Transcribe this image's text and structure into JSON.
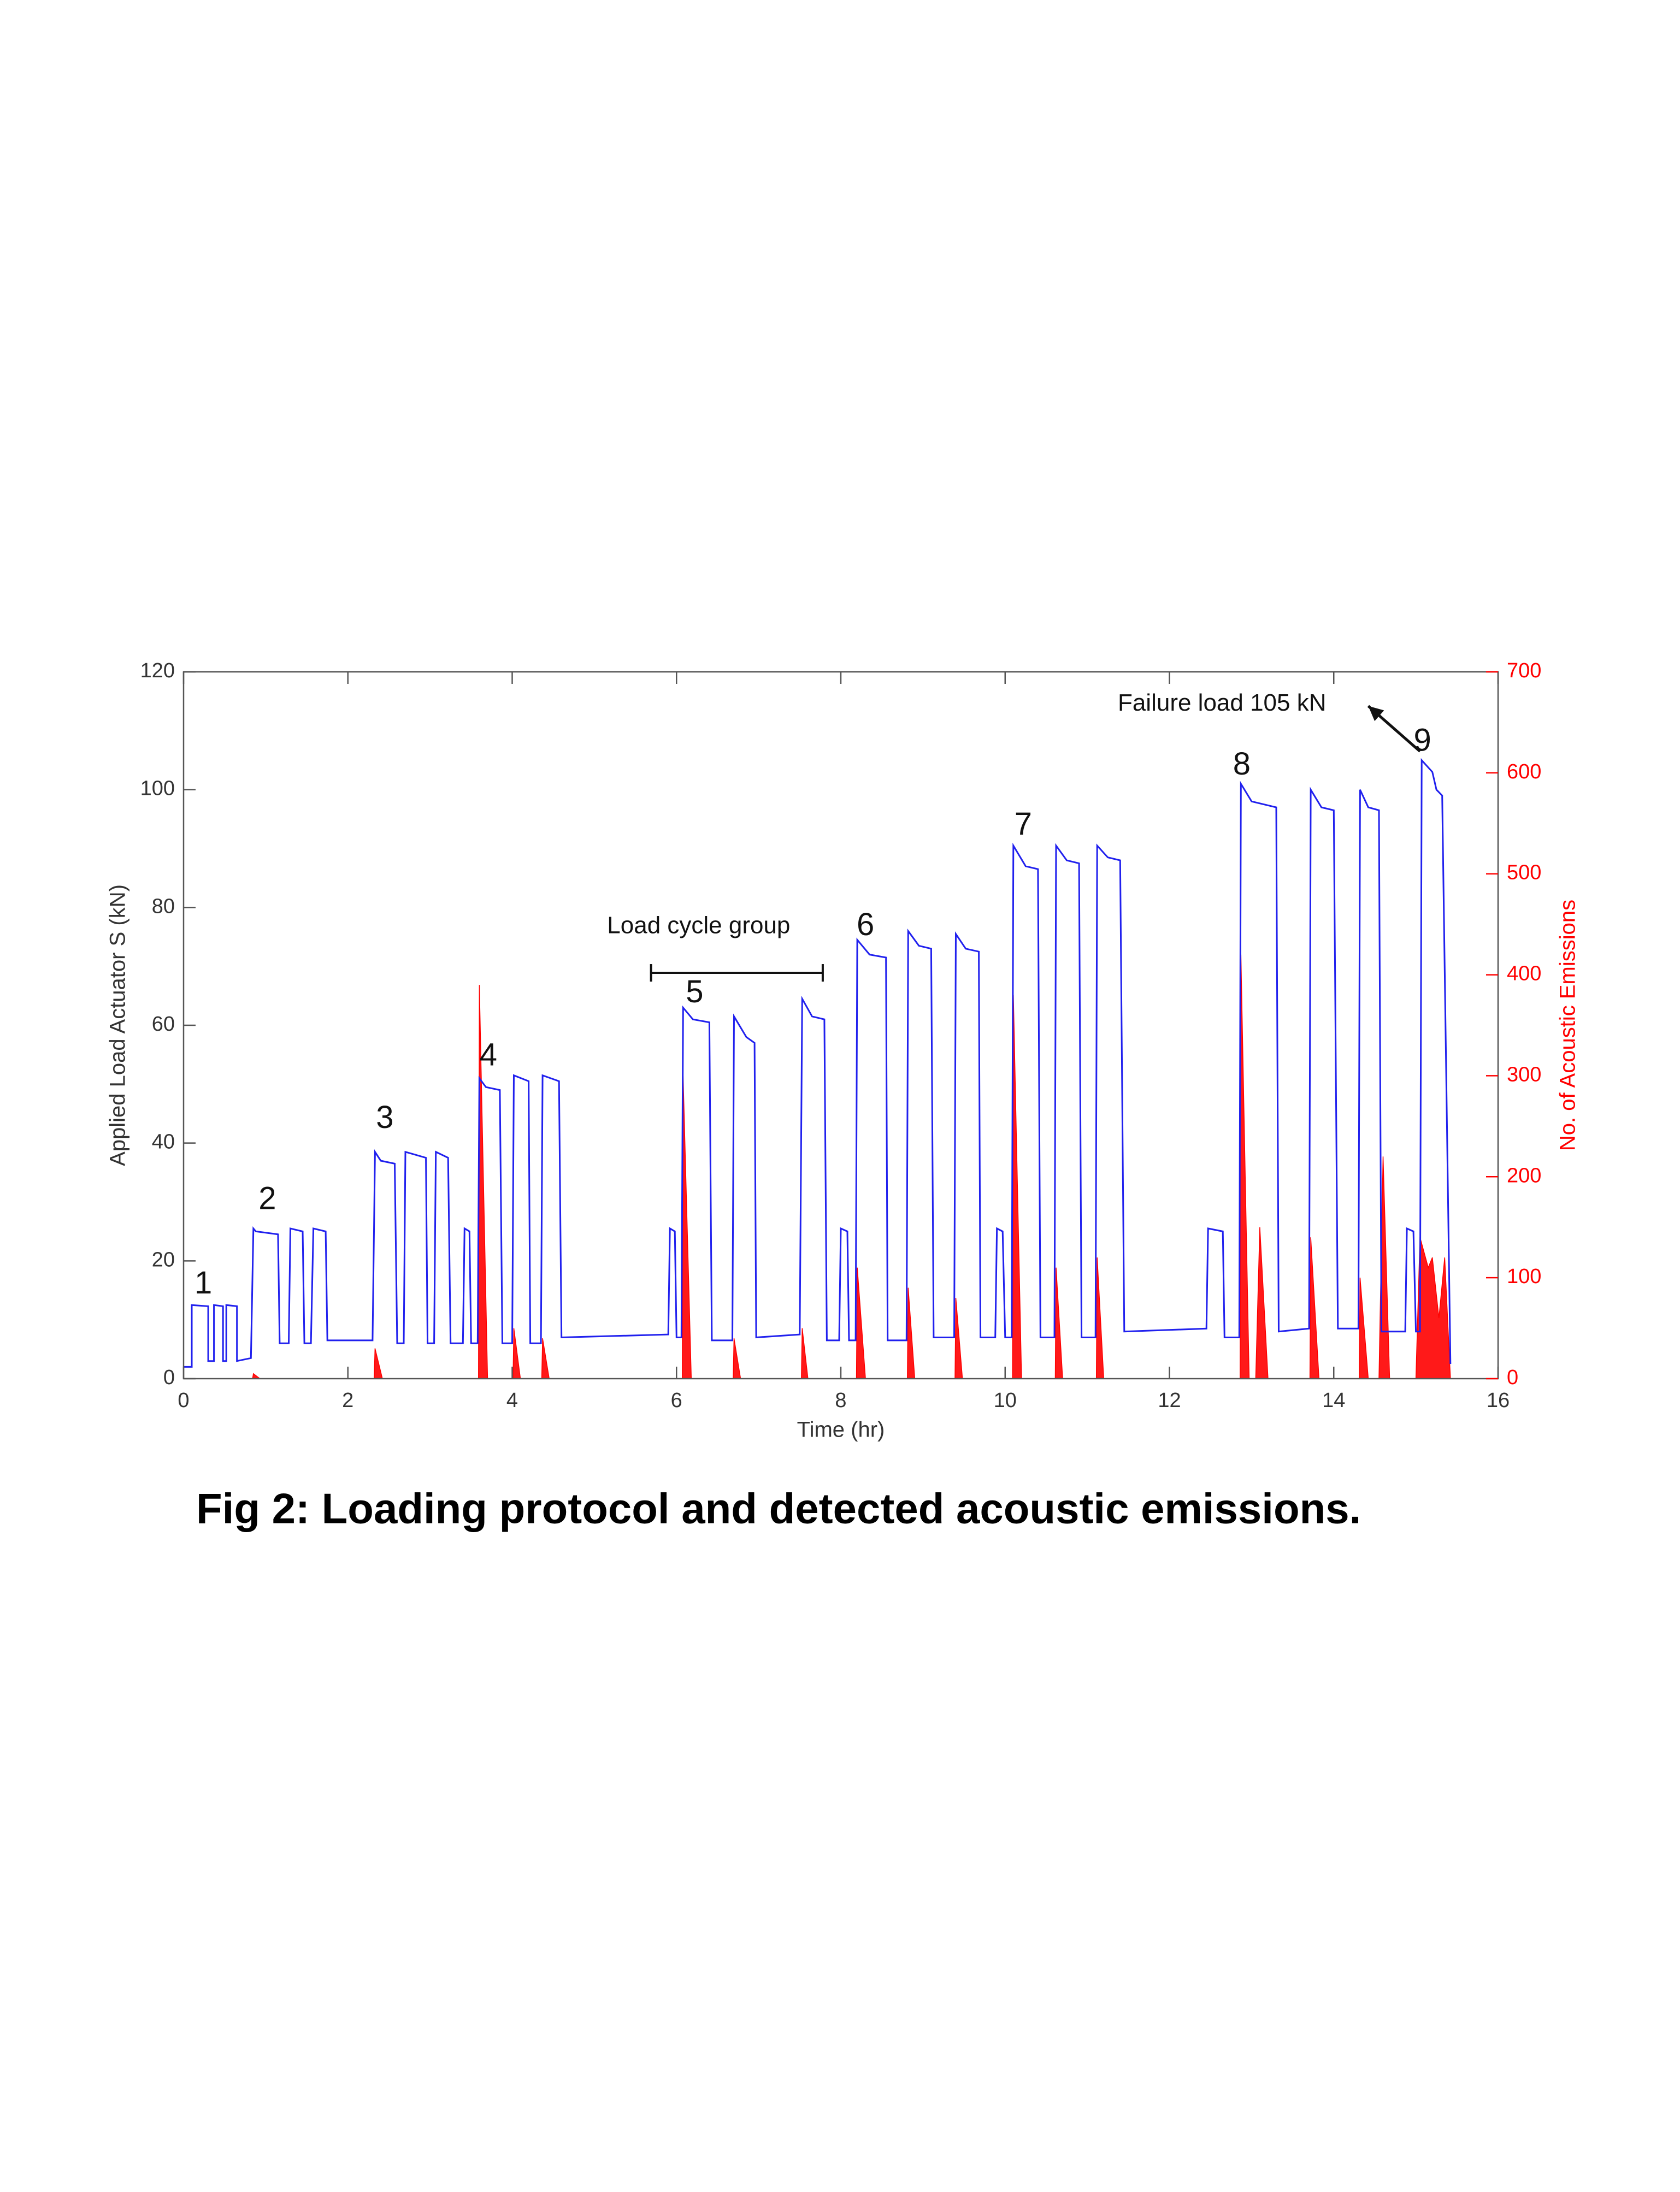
{
  "chart_data": {
    "type": "line",
    "caption": "Fig 2: Loading protocol and detected acoustic emissions.",
    "xlabel": "Time (hr)",
    "ylabel": "Applied Load Actuator S (kN)",
    "y2label": "No. of Acoustic Emissions",
    "xlim": [
      0,
      16
    ],
    "xticks": [
      0,
      2,
      4,
      6,
      8,
      10,
      12,
      14,
      16
    ],
    "ylim": [
      0,
      120
    ],
    "yticks": [
      0,
      20,
      40,
      60,
      80,
      100,
      120
    ],
    "y2lim": [
      0,
      700
    ],
    "y2ticks": [
      0,
      100,
      200,
      300,
      400,
      500,
      600,
      700
    ],
    "annotations": [
      "1",
      "2",
      "3",
      "4",
      "5",
      "6",
      "7",
      "8",
      "9",
      "Load cycle group",
      "Failure load 105 kN"
    ],
    "series": [
      {
        "color": "#ff0000",
        "axis": "y2",
        "fill": true,
        "x": [
          0,
          0.84,
          0.85,
          0.93,
          2.32,
          2.33,
          2.42,
          3.59,
          3.6,
          3.7,
          4.01,
          4.02,
          4.1,
          4.36,
          4.37,
          4.45,
          6.07,
          6.08,
          6.18,
          6.69,
          6.7,
          6.78,
          7.52,
          7.53,
          7.6,
          8.19,
          8.2,
          8.3,
          8.81,
          8.82,
          8.9,
          9.39,
          9.4,
          9.48,
          10.09,
          10.1,
          10.2,
          10.61,
          10.62,
          10.7,
          11.11,
          11.12,
          11.2,
          12.86,
          12.87,
          12.97,
          13.05,
          13.1,
          13.2,
          13.71,
          13.72,
          13.82,
          14.31,
          14.32,
          14.42,
          14.55,
          14.6,
          14.68,
          15.0,
          15.05,
          15.15,
          15.2,
          15.28,
          15.35,
          15.42
        ],
        "values": [
          0,
          0,
          5,
          0,
          0,
          30,
          0,
          0,
          390,
          0,
          0,
          50,
          0,
          0,
          40,
          0,
          0,
          300,
          0,
          0,
          40,
          0,
          0,
          50,
          0,
          0,
          110,
          0,
          0,
          90,
          0,
          0,
          80,
          0,
          0,
          380,
          0,
          0,
          110,
          0,
          0,
          120,
          0,
          0,
          420,
          0,
          0,
          150,
          0,
          0,
          140,
          0,
          0,
          100,
          0,
          0,
          220,
          0,
          0,
          140,
          110,
          120,
          60,
          120,
          0
        ]
      },
      {
        "color": "#2020ee",
        "axis": "y",
        "x": [
          0,
          0.1,
          0.1,
          0.3,
          0.3,
          0.37,
          0.37,
          0.48,
          0.48,
          0.52,
          0.52,
          0.65,
          0.65,
          0.82,
          0.85,
          0.88,
          1.15,
          1.17,
          1.28,
          1.3,
          1.45,
          1.47,
          1.55,
          1.58,
          1.73,
          1.75,
          2.3,
          2.33,
          2.4,
          2.57,
          2.6,
          2.68,
          2.7,
          2.95,
          2.97,
          3.05,
          3.07,
          3.22,
          3.25,
          3.4,
          3.42,
          3.48,
          3.5,
          3.58,
          3.6,
          3.68,
          3.85,
          3.88,
          4.0,
          4.02,
          4.2,
          4.22,
          4.35,
          4.37,
          4.57,
          4.6,
          5.9,
          5.92,
          5.98,
          6.0,
          6.06,
          6.08,
          6.2,
          6.4,
          6.43,
          6.68,
          6.7,
          6.85,
          6.95,
          6.97,
          7.5,
          7.53,
          7.65,
          7.8,
          7.83,
          7.98,
          8.0,
          8.08,
          8.1,
          8.18,
          8.2,
          8.35,
          8.55,
          8.57,
          8.8,
          8.82,
          8.95,
          9.1,
          9.13,
          9.38,
          9.4,
          9.52,
          9.68,
          9.7,
          9.88,
          9.9,
          9.97,
          10.0,
          10.08,
          10.1,
          10.25,
          10.4,
          10.43,
          10.6,
          10.62,
          10.75,
          10.9,
          10.93,
          11.1,
          11.12,
          11.25,
          11.4,
          11.45,
          12.45,
          12.47,
          12.65,
          12.67,
          12.85,
          12.87,
          13.0,
          13.3,
          13.33,
          13.7,
          13.72,
          13.85,
          14.0,
          14.05,
          14.3,
          14.32,
          14.42,
          14.55,
          14.58,
          14.87,
          14.89,
          14.97,
          15.0,
          15.05,
          15.07,
          15.2,
          15.25,
          15.32,
          15.42
        ],
        "values": [
          2,
          2,
          12.5,
          12.3,
          3,
          3,
          12.5,
          12.3,
          3,
          3,
          12.5,
          12.3,
          3,
          3.5,
          25.5,
          25,
          24.5,
          6,
          6,
          25.5,
          25,
          6,
          6,
          25.5,
          25,
          6.5,
          6.5,
          38.5,
          37,
          36.5,
          6,
          6,
          38.5,
          37.5,
          6,
          6,
          38.5,
          37.5,
          6,
          6,
          25.5,
          25,
          6,
          6,
          51,
          49.5,
          49,
          6,
          6,
          51.5,
          50.5,
          6,
          6,
          51.5,
          50.5,
          7,
          7.5,
          25.5,
          25,
          7,
          7,
          63,
          61,
          60.5,
          6.5,
          6.5,
          61.5,
          58,
          57,
          7,
          7.5,
          64.5,
          61.5,
          61,
          6.5,
          6.5,
          25.5,
          25,
          6.5,
          6.5,
          74.5,
          72,
          71.5,
          6.5,
          6.5,
          76,
          73.5,
          73,
          7,
          7,
          75.5,
          73,
          72.5,
          7,
          7,
          25.5,
          25,
          7,
          7,
          90.5,
          87,
          86.5,
          7,
          7,
          90.5,
          88,
          87.5,
          7,
          7,
          90.5,
          88.5,
          88,
          8,
          8.5,
          25.5,
          25,
          7,
          7,
          101,
          98,
          97,
          8,
          8.5,
          100,
          97,
          96.5,
          8.5,
          8.5,
          100,
          97,
          96.5,
          8,
          8,
          25.5,
          25,
          8,
          8,
          105,
          103,
          100,
          99,
          2.5
        ]
      }
    ]
  }
}
